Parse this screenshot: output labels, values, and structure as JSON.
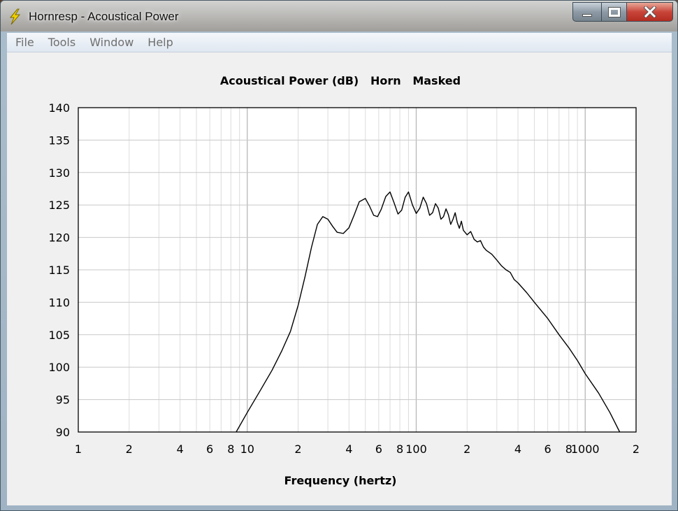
{
  "window": {
    "title": "Hornresp - Acoustical Power",
    "icon": "lightning-bolt-icon"
  },
  "menu": {
    "items": [
      "File",
      "Tools",
      "Window",
      "Help"
    ]
  },
  "chart_data": {
    "type": "line",
    "title": "Acoustical Power (dB)   Horn   Masked",
    "xlabel": "Frequency (hertz)",
    "ylabel": "",
    "x_scale": "log",
    "xlim": [
      1,
      2000
    ],
    "ylim": [
      90,
      140
    ],
    "grid": true,
    "y_ticks": [
      140,
      135,
      130,
      125,
      120,
      115,
      110,
      105,
      100,
      95,
      90
    ],
    "x_ticks": [
      {
        "value": 1,
        "label": "1"
      },
      {
        "value": 2,
        "label": "2"
      },
      {
        "value": 4,
        "label": "4"
      },
      {
        "value": 6,
        "label": "6"
      },
      {
        "value": 8,
        "label": "8"
      },
      {
        "value": 10,
        "label": "10"
      },
      {
        "value": 20,
        "label": "2"
      },
      {
        "value": 40,
        "label": "4"
      },
      {
        "value": 60,
        "label": "6"
      },
      {
        "value": 80,
        "label": "8"
      },
      {
        "value": 100,
        "label": "100"
      },
      {
        "value": 200,
        "label": "2"
      },
      {
        "value": 400,
        "label": "4"
      },
      {
        "value": 600,
        "label": "6"
      },
      {
        "value": 800,
        "label": "8"
      },
      {
        "value": 1000,
        "label": "1000"
      },
      {
        "value": 2000,
        "label": "2"
      }
    ],
    "series": [
      {
        "color": "#000000",
        "x": [
          8.6,
          10,
          12,
          14,
          16,
          18,
          20,
          22,
          24,
          26,
          28,
          30,
          32,
          34,
          37,
          40,
          43,
          46,
          50,
          53,
          56,
          59,
          62,
          66,
          70,
          74,
          78,
          82,
          86,
          90,
          95,
          100,
          105,
          110,
          115,
          120,
          125,
          130,
          135,
          140,
          145,
          150,
          155,
          160,
          165,
          170,
          175,
          180,
          185,
          190,
          200,
          210,
          220,
          230,
          240,
          250,
          260,
          280,
          300,
          320,
          340,
          360,
          380,
          400,
          450,
          500,
          600,
          700,
          800,
          900,
          1000,
          1200,
          1400,
          1600
        ],
        "y": [
          90,
          93,
          96.5,
          99.5,
          102.5,
          105.5,
          109.5,
          114,
          118.5,
          122,
          123.2,
          122.8,
          121.7,
          120.8,
          120.6,
          121.5,
          123.5,
          125.5,
          126,
          124.8,
          123.4,
          123.2,
          124.3,
          126.3,
          127,
          125.3,
          123.6,
          124.2,
          126.2,
          127,
          125,
          123.7,
          124.5,
          126.2,
          125.2,
          123.4,
          123.8,
          125.2,
          124.5,
          122.8,
          123.2,
          124.4,
          123.5,
          122,
          122.8,
          123.8,
          122.3,
          121.4,
          122.5,
          121.1,
          120.4,
          120.9,
          119.7,
          119.3,
          119.5,
          118.5,
          118,
          117.4,
          116.5,
          115.6,
          115,
          114.6,
          113.5,
          113,
          111.5,
          110,
          107.5,
          105,
          103,
          101,
          99,
          96,
          93,
          90
        ]
      }
    ]
  }
}
